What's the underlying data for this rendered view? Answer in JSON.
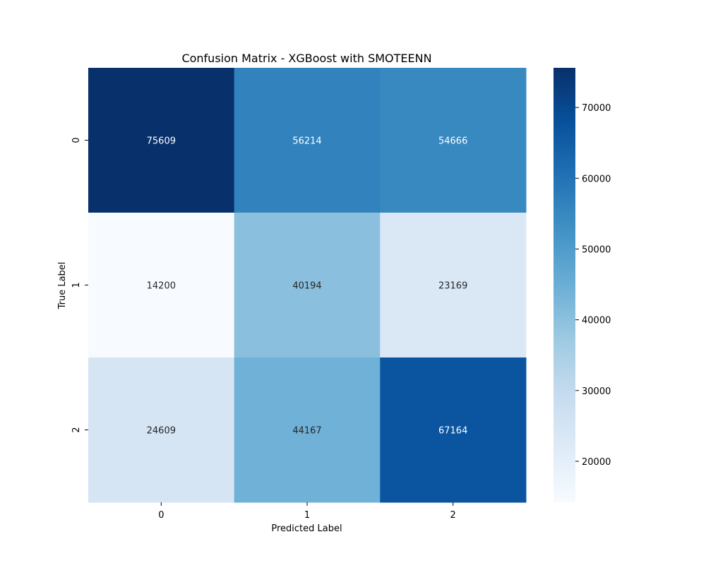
{
  "chart_data": {
    "type": "heatmap",
    "title": "Confusion Matrix - XGBoost with SMOTEENN",
    "xlabel": "Predicted Label",
    "ylabel": "True Label",
    "x_categories": [
      "0",
      "1",
      "2"
    ],
    "y_categories": [
      "0",
      "1",
      "2"
    ],
    "values": [
      [
        75609,
        56214,
        54666
      ],
      [
        14200,
        40194,
        23169
      ],
      [
        24609,
        44167,
        67164
      ]
    ],
    "colormap": "Blues",
    "color_range": [
      14200,
      75609
    ],
    "colorbar": {
      "ticks": [
        20000,
        30000,
        40000,
        50000,
        60000,
        70000
      ],
      "tick_labels": [
        "20000",
        "30000",
        "40000",
        "50000",
        "60000",
        "70000"
      ]
    },
    "annotated": true,
    "grid": false
  }
}
